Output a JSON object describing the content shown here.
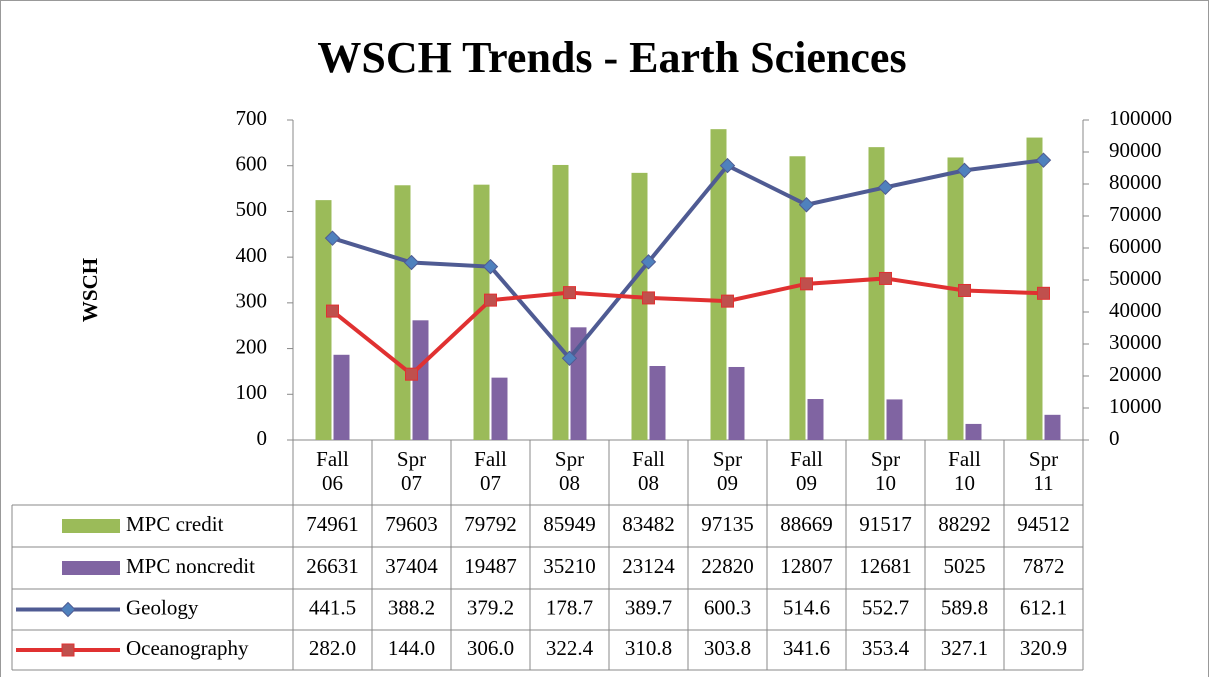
{
  "chart_data": {
    "type": "combo",
    "title": "WSCH Trends - Earth Sciences",
    "y_label": "WSCH",
    "categories": [
      "Fall 06",
      "Spr 07",
      "Fall 07",
      "Spr 08",
      "Fall 08",
      "Spr 09",
      "Fall 09",
      "Spr 10",
      "Fall 10",
      "Spr 11"
    ],
    "series": [
      {
        "name": "MPC credit",
        "type": "bar",
        "axis": "y2",
        "color": "#9bbb59",
        "values": [
          74961,
          79603,
          79792,
          85949,
          83482,
          97135,
          88669,
          91517,
          88292,
          94512
        ]
      },
      {
        "name": "MPC noncredit",
        "type": "bar",
        "axis": "y2",
        "color": "#8064a2",
        "values": [
          26631,
          37404,
          19487,
          35210,
          23124,
          22820,
          12807,
          12681,
          5025,
          7872
        ]
      },
      {
        "name": "Geology",
        "type": "line",
        "marker": "diamond",
        "color": "#4f5b93",
        "marker_color": "#4f81bd",
        "values": [
          441.5,
          388.2,
          379.2,
          178.7,
          389.7,
          600.3,
          514.6,
          552.7,
          589.8,
          612.1
        ],
        "value_labels": [
          "441.5",
          "388.2",
          "379.2",
          "178.7",
          "389.7",
          "600.3",
          "514.6",
          "552.7",
          "589.8",
          "612.1"
        ]
      },
      {
        "name": "Oceanography",
        "type": "line",
        "marker": "square",
        "color": "#e03131",
        "marker_color": "#c0504d",
        "values": [
          282,
          144,
          306,
          322.4,
          310.8,
          303.8,
          341.6,
          353.4,
          327.1,
          320.9
        ],
        "value_labels": [
          "282.0",
          "144.0",
          "306.0",
          "322.4",
          "310.8",
          "303.8",
          "341.6",
          "353.4",
          "327.1",
          "320.9"
        ]
      }
    ],
    "ylim": [
      0,
      700
    ],
    "yticks": [
      0,
      100,
      200,
      300,
      400,
      500,
      600,
      700
    ],
    "y2lim": [
      0,
      100000
    ],
    "y2ticks": [
      0,
      10000,
      20000,
      30000,
      40000,
      50000,
      60000,
      70000,
      80000,
      90000,
      100000
    ],
    "grid": false,
    "data_table": true
  }
}
